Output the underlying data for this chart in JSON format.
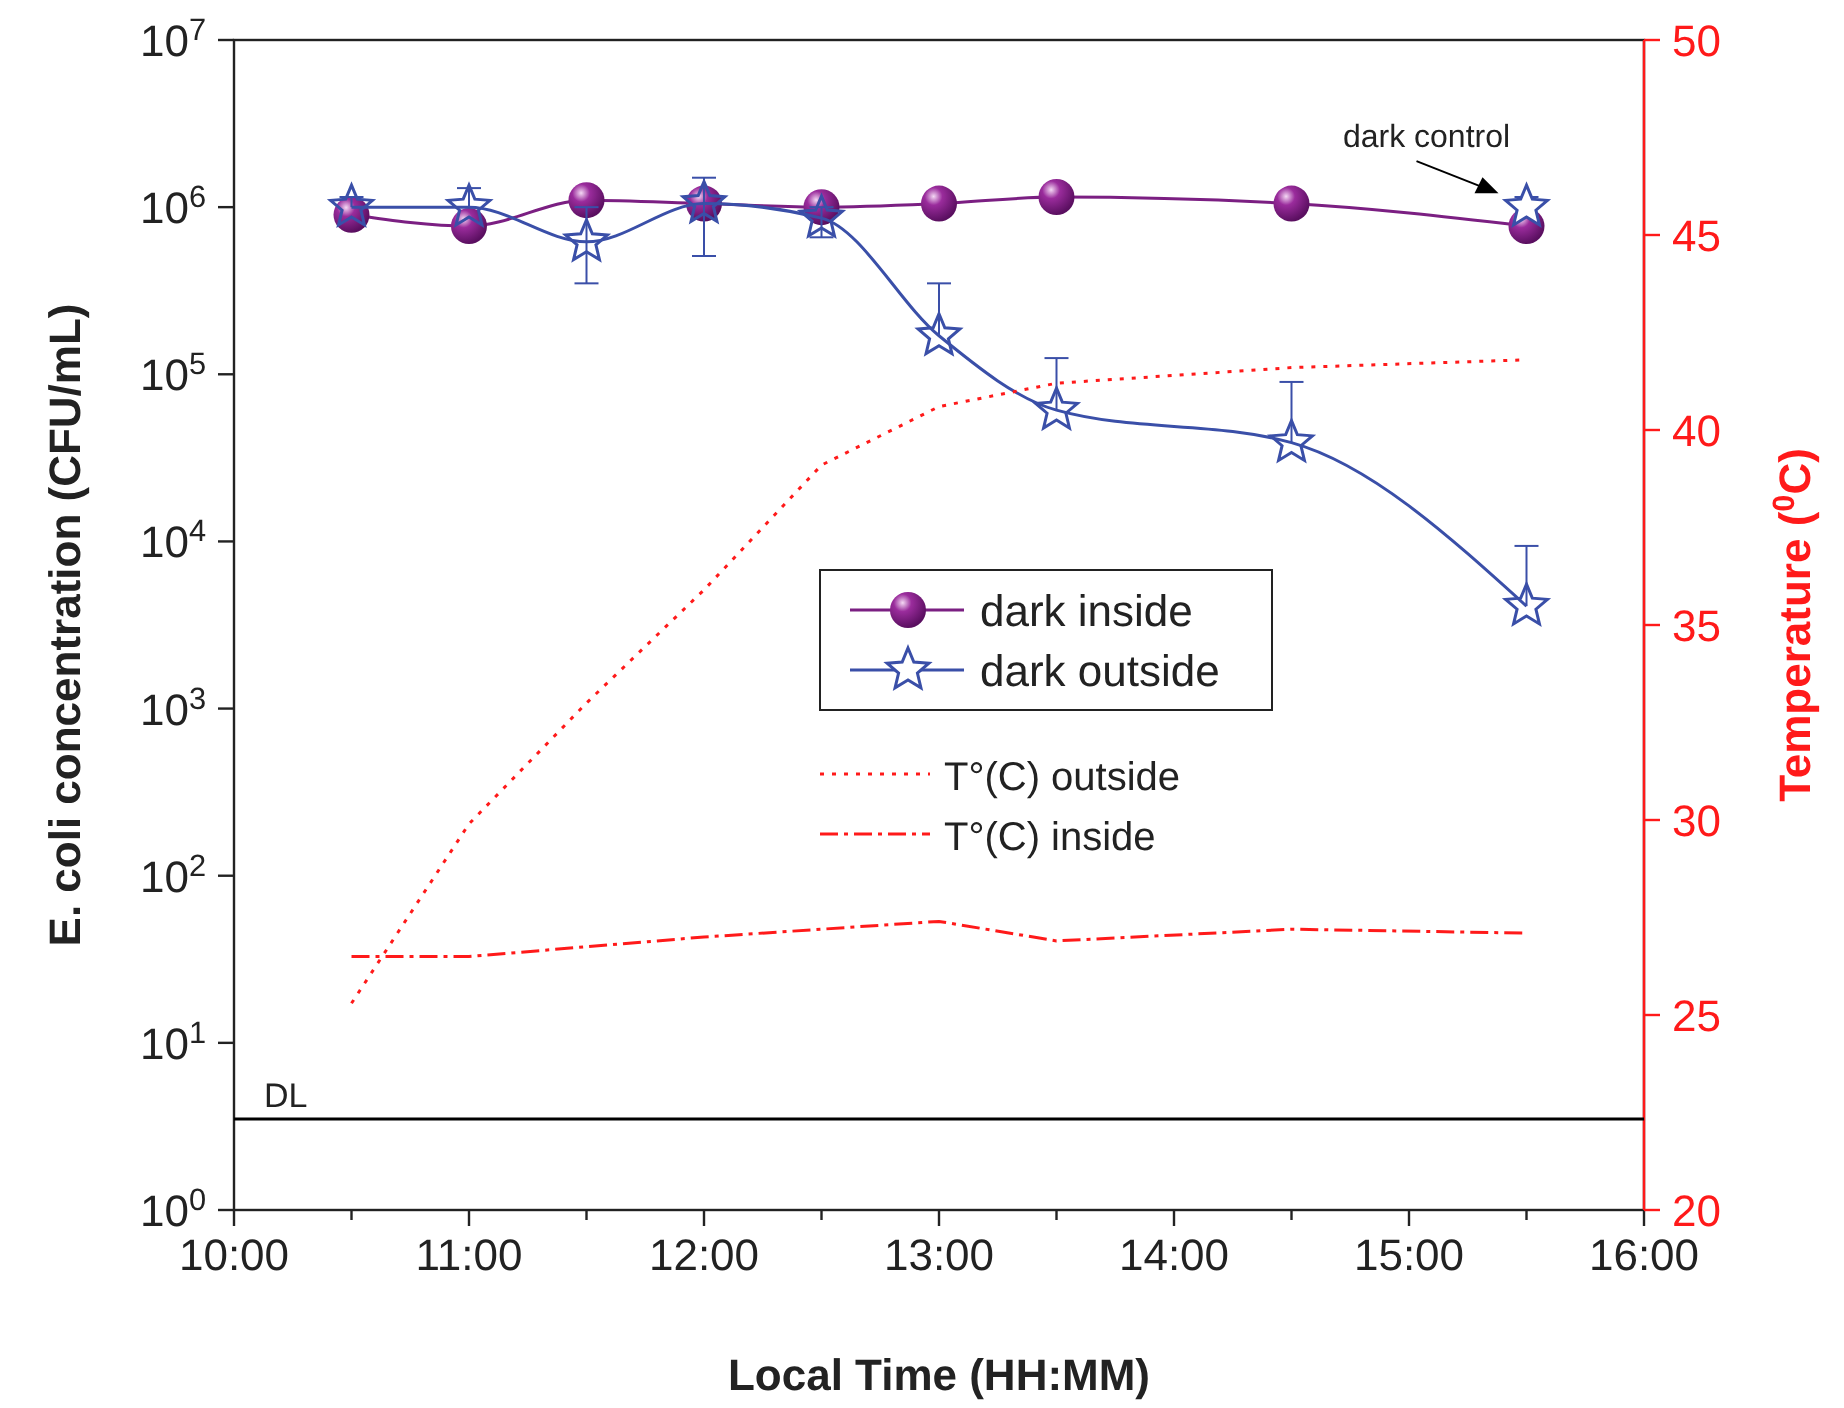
{
  "chart_data": {
    "type": "line",
    "xlabel": "Local Time (HH:MM)",
    "ylabel": "E. coli concentration (CFU/mL)",
    "y2label": "Temperature ($^{0}$C)",
    "log": "y",
    "grid": false,
    "legend": "center",
    "xlim": [
      10,
      16
    ],
    "xticks": [
      {
        "value": 10,
        "label": "10:00"
      },
      {
        "value": 10.5,
        "label": null
      },
      {
        "value": 11,
        "label": "11:00"
      },
      {
        "value": 11.5,
        "label": null
      },
      {
        "value": 12,
        "label": "12:00"
      },
      {
        "value": 12.5,
        "label": null
      },
      {
        "value": 13,
        "label": "13:00"
      },
      {
        "value": 13.5,
        "label": null
      },
      {
        "value": 14,
        "label": "14:00"
      },
      {
        "value": 14.5,
        "label": null
      },
      {
        "value": 15,
        "label": "15:00"
      },
      {
        "value": 15.5,
        "label": null
      },
      {
        "value": 16,
        "label": "16:00"
      }
    ],
    "ylim": [
      1,
      10000000
    ],
    "yticks": [
      {
        "value": 1,
        "label": "10$^{0}$"
      },
      {
        "value": 10,
        "label": "10$^{1}$"
      },
      {
        "value": 100,
        "label": "10$^{2}$"
      },
      {
        "value": 1000,
        "label": "10$^{3}$"
      },
      {
        "value": 10000,
        "label": "10$^{4}$"
      },
      {
        "value": 100000,
        "label": "10$^{5}$"
      },
      {
        "value": 1000000,
        "label": "10$^{6}$"
      },
      {
        "value": 10000000,
        "label": "10$^{7}$"
      }
    ],
    "y2lim": [
      20,
      50
    ],
    "y2ticks": [
      20,
      25,
      30,
      35,
      40,
      45,
      50
    ],
    "ref_lines": [
      {
        "axis": "y",
        "value": 3.5,
        "label": "DL",
        "color": "#000000"
      }
    ],
    "annotations": [
      {
        "text": "dark control",
        "x": 15.5,
        "y": 1000000
      }
    ],
    "series": [
      {
        "name": "dark inside",
        "color": "#7b1f82",
        "marker": "circle",
        "line_style": "solid",
        "x": [
          10.5,
          11,
          11.5,
          12,
          12.5,
          13,
          13.5,
          14.5,
          15.5
        ],
        "values": [
          900000,
          770000,
          1100000,
          1050000,
          1000000,
          1050000,
          1150000,
          1050000,
          770000
        ]
      },
      {
        "name": "dark outside",
        "color": "#3a4fa8",
        "marker": "star",
        "line_style": "solid",
        "x": [
          10.5,
          11,
          11.5,
          12,
          12.5,
          13,
          13.5,
          14.5,
          15.5
        ],
        "values": [
          1000000,
          1000000,
          620000,
          1050000,
          860000,
          170000,
          61000,
          39000,
          4100
        ],
        "errors": [
          [
            1000000,
            1150000
          ],
          [
            1000000,
            1300000
          ],
          [
            350000,
            1000000
          ],
          [
            510000,
            1500000
          ],
          [
            660000,
            1000000
          ],
          [
            170000,
            350000
          ],
          [
            61000,
            125000
          ],
          [
            39000,
            90000
          ],
          [
            4100,
            9400
          ]
        ]
      },
      {
        "type": "scatter",
        "color": "#3a4fa8",
        "marker": "star",
        "x": [
          15.5
        ],
        "values": [
          1000000
        ],
        "errors": [
          [
            1000000,
            1150000
          ]
        ]
      },
      {
        "name": "T°(C) outside",
        "color": "#ff1a1a",
        "axis": "y2",
        "marker": "none",
        "line_style": "dotted",
        "x": [
          10.5,
          11,
          11.5,
          12,
          12.5,
          13,
          13.5,
          14.5,
          15.5
        ],
        "values": [
          25.3,
          29.9,
          33.0,
          35.9,
          39.1,
          40.6,
          41.2,
          41.6,
          41.8
        ]
      },
      {
        "name": "T°(C) inside",
        "color": "#ff1a1a",
        "axis": "y2",
        "marker": "none",
        "line_style": "dashed",
        "x": [
          10.5,
          11,
          12,
          13,
          13.5,
          14.5,
          15.5
        ],
        "values": [
          26.5,
          26.5,
          27.0,
          27.4,
          26.9,
          27.2,
          27.1
        ]
      }
    ]
  }
}
